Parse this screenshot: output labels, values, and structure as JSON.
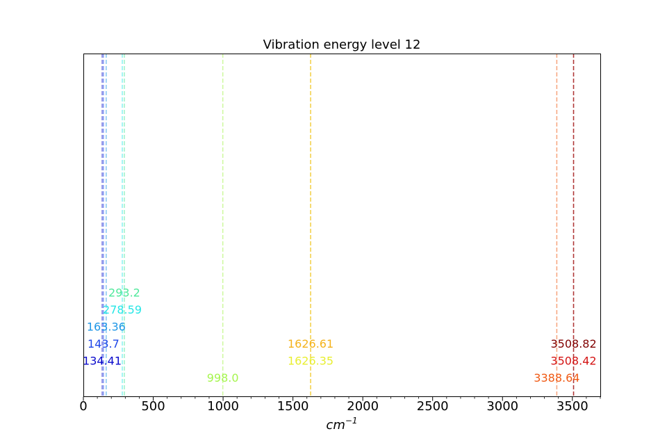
{
  "chart_data": {
    "type": "line",
    "title": "Vibration energy level 12",
    "xlabel": "cm",
    "xlabel_superscript": "−1",
    "ylabel": "",
    "xlim": [
      0,
      3700
    ],
    "x_ticks": [
      0,
      500,
      1000,
      1500,
      2000,
      2500,
      3000,
      3500
    ],
    "x_tick_labels": [
      "0",
      "500",
      "1000",
      "1500",
      "2000",
      "2500",
      "3000",
      "3500"
    ],
    "grid": false,
    "peaks": [
      {
        "x": 134.41,
        "label": "134.41",
        "color": "#0a0acc",
        "row": 1
      },
      {
        "x": 143.7,
        "label": "143.7",
        "color": "#1e46e8",
        "row": 2
      },
      {
        "x": 163.36,
        "label": "163.36",
        "color": "#1e96e6",
        "row": 3
      },
      {
        "x": 278.59,
        "label": "278.59",
        "color": "#26e6e6",
        "row": 4
      },
      {
        "x": 293.2,
        "label": "293.2",
        "color": "#4de89a",
        "row": 5
      },
      {
        "x": 998.0,
        "label": "998.0",
        "color": "#a6f54f",
        "row": 0
      },
      {
        "x": 1626.35,
        "label": "1626.35",
        "color": "#e8ef30",
        "row": 1
      },
      {
        "x": 1626.61,
        "label": "1626.61",
        "color": "#f4b21a",
        "row": 2
      },
      {
        "x": 3388.64,
        "label": "3388.64",
        "color": "#f05a14",
        "row": 0
      },
      {
        "x": 3508.42,
        "label": "3508.42",
        "color": "#d41414",
        "row": 1
      },
      {
        "x": 3508.82,
        "label": "3508.82",
        "color": "#800000",
        "row": 2
      }
    ]
  }
}
